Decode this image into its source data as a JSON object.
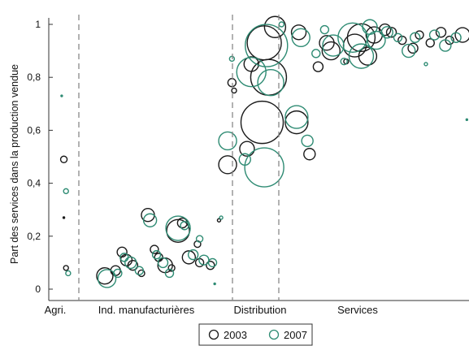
{
  "chart_data": {
    "type": "scatter",
    "ylabel": "Part des services dans la production vendue",
    "xlabel": "",
    "ylim": [
      0,
      1
    ],
    "yticks": [
      {
        "value": 0,
        "label": "0"
      },
      {
        "value": 0.2,
        "label": "0,2"
      },
      {
        "value": 0.4,
        "label": "0,4"
      },
      {
        "value": 0.6,
        "label": "0,6"
      },
      {
        "value": 0.8,
        "label": "0,8"
      },
      {
        "value": 1,
        "label": "1"
      }
    ],
    "categories": [
      "Agri.",
      "Ind. manufacturières",
      "Distribution",
      "Services"
    ],
    "legend": {
      "position": "bottom-center"
    },
    "colors": {
      "2003": "#1a1a1a",
      "2007": "#2e8b73",
      "divider": "#888888",
      "axis": "#333333"
    },
    "series": [
      {
        "name": "2003",
        "points": [
          {
            "x": 0.7,
            "y": 0.49,
            "s": 4
          },
          {
            "x": 0.7,
            "y": 0.27,
            "s": 1
          },
          {
            "x": 0.8,
            "y": 0.08,
            "s": 3
          },
          {
            "x": 2.6,
            "y": 0.05,
            "s": 10
          },
          {
            "x": 3.1,
            "y": 0.07,
            "s": 6
          },
          {
            "x": 3.4,
            "y": 0.14,
            "s": 6
          },
          {
            "x": 3.6,
            "y": 0.11,
            "s": 7
          },
          {
            "x": 3.9,
            "y": 0.09,
            "s": 6
          },
          {
            "x": 4.3,
            "y": 0.06,
            "s": 4
          },
          {
            "x": 4.6,
            "y": 0.28,
            "s": 8
          },
          {
            "x": 4.9,
            "y": 0.15,
            "s": 5
          },
          {
            "x": 5.1,
            "y": 0.12,
            "s": 5
          },
          {
            "x": 5.4,
            "y": 0.09,
            "s": 9
          },
          {
            "x": 5.7,
            "y": 0.08,
            "s": 4
          },
          {
            "x": 6.0,
            "y": 0.22,
            "s": 14
          },
          {
            "x": 6.2,
            "y": 0.25,
            "s": 6
          },
          {
            "x": 6.5,
            "y": 0.12,
            "s": 8
          },
          {
            "x": 6.9,
            "y": 0.17,
            "s": 4
          },
          {
            "x": 7.0,
            "y": 0.1,
            "s": 5
          },
          {
            "x": 7.5,
            "y": 0.09,
            "s": 5
          },
          {
            "x": 7.9,
            "y": 0.26,
            "s": 2
          },
          {
            "x": 8.3,
            "y": 0.47,
            "s": 11
          },
          {
            "x": 8.5,
            "y": 0.78,
            "s": 5
          },
          {
            "x": 8.6,
            "y": 0.75,
            "s": 3
          },
          {
            "x": 9.2,
            "y": 0.53,
            "s": 9
          },
          {
            "x": 9.4,
            "y": 0.85,
            "s": 9
          },
          {
            "x": 9.9,
            "y": 0.63,
            "s": 26
          },
          {
            "x": 10.0,
            "y": 0.93,
            "s": 21
          },
          {
            "x": 10.2,
            "y": 0.8,
            "s": 22
          },
          {
            "x": 10.5,
            "y": 0.99,
            "s": 13
          },
          {
            "x": 11.5,
            "y": 0.63,
            "s": 14
          },
          {
            "x": 11.6,
            "y": 0.97,
            "s": 9
          },
          {
            "x": 12.1,
            "y": 0.51,
            "s": 7
          },
          {
            "x": 12.5,
            "y": 0.84,
            "s": 6
          },
          {
            "x": 12.9,
            "y": 0.93,
            "s": 9
          },
          {
            "x": 13.1,
            "y": 0.9,
            "s": 11
          },
          {
            "x": 13.8,
            "y": 0.86,
            "s": 3
          },
          {
            "x": 14.2,
            "y": 0.92,
            "s": 14
          },
          {
            "x": 14.5,
            "y": 0.95,
            "s": 17
          },
          {
            "x": 14.8,
            "y": 0.88,
            "s": 11
          },
          {
            "x": 15.1,
            "y": 0.96,
            "s": 10
          },
          {
            "x": 15.6,
            "y": 0.98,
            "s": 7
          },
          {
            "x": 15.9,
            "y": 0.97,
            "s": 6
          },
          {
            "x": 16.4,
            "y": 0.94,
            "s": 5
          },
          {
            "x": 16.9,
            "y": 0.91,
            "s": 6
          },
          {
            "x": 17.2,
            "y": 0.96,
            "s": 5
          },
          {
            "x": 17.7,
            "y": 0.93,
            "s": 5
          },
          {
            "x": 18.2,
            "y": 0.97,
            "s": 6
          },
          {
            "x": 18.6,
            "y": 0.94,
            "s": 5
          },
          {
            "x": 19.2,
            "y": 0.96,
            "s": 9
          }
        ]
      },
      {
        "name": "2007",
        "points": [
          {
            "x": 0.6,
            "y": 0.73,
            "s": 1
          },
          {
            "x": 0.8,
            "y": 0.37,
            "s": 3
          },
          {
            "x": 0.9,
            "y": 0.06,
            "s": 3
          },
          {
            "x": 2.7,
            "y": 0.04,
            "s": 11
          },
          {
            "x": 3.2,
            "y": 0.06,
            "s": 5
          },
          {
            "x": 3.5,
            "y": 0.12,
            "s": 5
          },
          {
            "x": 3.8,
            "y": 0.1,
            "s": 7
          },
          {
            "x": 4.2,
            "y": 0.07,
            "s": 5
          },
          {
            "x": 4.7,
            "y": 0.26,
            "s": 8
          },
          {
            "x": 5.0,
            "y": 0.13,
            "s": 5
          },
          {
            "x": 5.3,
            "y": 0.1,
            "s": 6
          },
          {
            "x": 5.6,
            "y": 0.06,
            "s": 5
          },
          {
            "x": 6.0,
            "y": 0.23,
            "s": 15
          },
          {
            "x": 6.3,
            "y": 0.24,
            "s": 5
          },
          {
            "x": 6.7,
            "y": 0.13,
            "s": 6
          },
          {
            "x": 7.0,
            "y": 0.19,
            "s": 4
          },
          {
            "x": 7.2,
            "y": 0.11,
            "s": 6
          },
          {
            "x": 7.6,
            "y": 0.1,
            "s": 5
          },
          {
            "x": 7.7,
            "y": 0.02,
            "s": 1
          },
          {
            "x": 8.0,
            "y": 0.27,
            "s": 2
          },
          {
            "x": 8.3,
            "y": 0.56,
            "s": 11
          },
          {
            "x": 8.5,
            "y": 0.87,
            "s": 3
          },
          {
            "x": 9.1,
            "y": 0.49,
            "s": 7
          },
          {
            "x": 9.4,
            "y": 0.82,
            "s": 18
          },
          {
            "x": 10.0,
            "y": 0.46,
            "s": 24
          },
          {
            "x": 10.1,
            "y": 0.92,
            "s": 26
          },
          {
            "x": 10.3,
            "y": 0.78,
            "s": 16
          },
          {
            "x": 10.8,
            "y": 1.0,
            "s": 3
          },
          {
            "x": 11.5,
            "y": 0.65,
            "s": 14
          },
          {
            "x": 11.7,
            "y": 0.95,
            "s": 11
          },
          {
            "x": 12.0,
            "y": 0.56,
            "s": 7
          },
          {
            "x": 12.4,
            "y": 0.89,
            "s": 5
          },
          {
            "x": 12.8,
            "y": 0.98,
            "s": 5
          },
          {
            "x": 13.2,
            "y": 0.92,
            "s": 13
          },
          {
            "x": 13.7,
            "y": 0.86,
            "s": 4
          },
          {
            "x": 14.1,
            "y": 0.95,
            "s": 18
          },
          {
            "x": 14.5,
            "y": 0.88,
            "s": 15
          },
          {
            "x": 14.9,
            "y": 0.99,
            "s": 9
          },
          {
            "x": 15.2,
            "y": 0.94,
            "s": 11
          },
          {
            "x": 15.7,
            "y": 0.97,
            "s": 7
          },
          {
            "x": 16.2,
            "y": 0.95,
            "s": 5
          },
          {
            "x": 16.7,
            "y": 0.9,
            "s": 8
          },
          {
            "x": 17.0,
            "y": 0.95,
            "s": 6
          },
          {
            "x": 17.5,
            "y": 0.85,
            "s": 2
          },
          {
            "x": 17.9,
            "y": 0.96,
            "s": 6
          },
          {
            "x": 18.4,
            "y": 0.92,
            "s": 7
          },
          {
            "x": 18.9,
            "y": 0.95,
            "s": 6
          },
          {
            "x": 19.4,
            "y": 0.64,
            "s": 1
          }
        ]
      }
    ]
  }
}
